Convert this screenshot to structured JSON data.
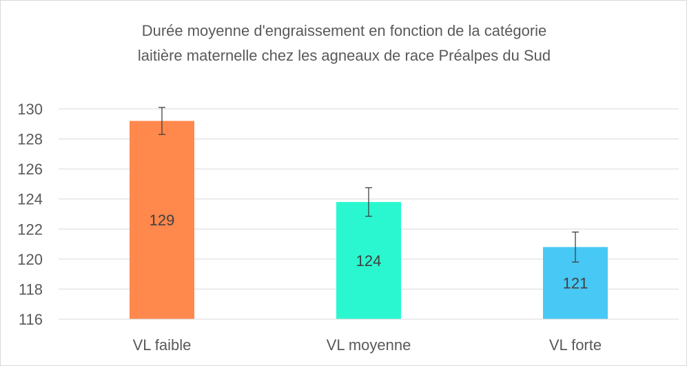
{
  "chart_data": {
    "type": "bar",
    "title_line1": "Durée moyenne d'engraissement en fonction de la catégorie",
    "title_line2": "laitière maternelle chez les agneaux de race Préalpes du Sud",
    "xlabel": "",
    "ylabel": "",
    "ylim": [
      116,
      130
    ],
    "yticks": [
      116,
      118,
      120,
      122,
      124,
      126,
      128,
      130
    ],
    "grid": true,
    "legend": "none",
    "categories": [
      "VL faible",
      "VL moyenne",
      "VL forte"
    ],
    "values": [
      129.2,
      123.8,
      120.8
    ],
    "data_labels": [
      "129",
      "124",
      "121"
    ],
    "error_bars": [
      0.9,
      0.95,
      1.0
    ],
    "colors": [
      "#ff884d",
      "#2af7cf",
      "#47c8f5"
    ]
  }
}
